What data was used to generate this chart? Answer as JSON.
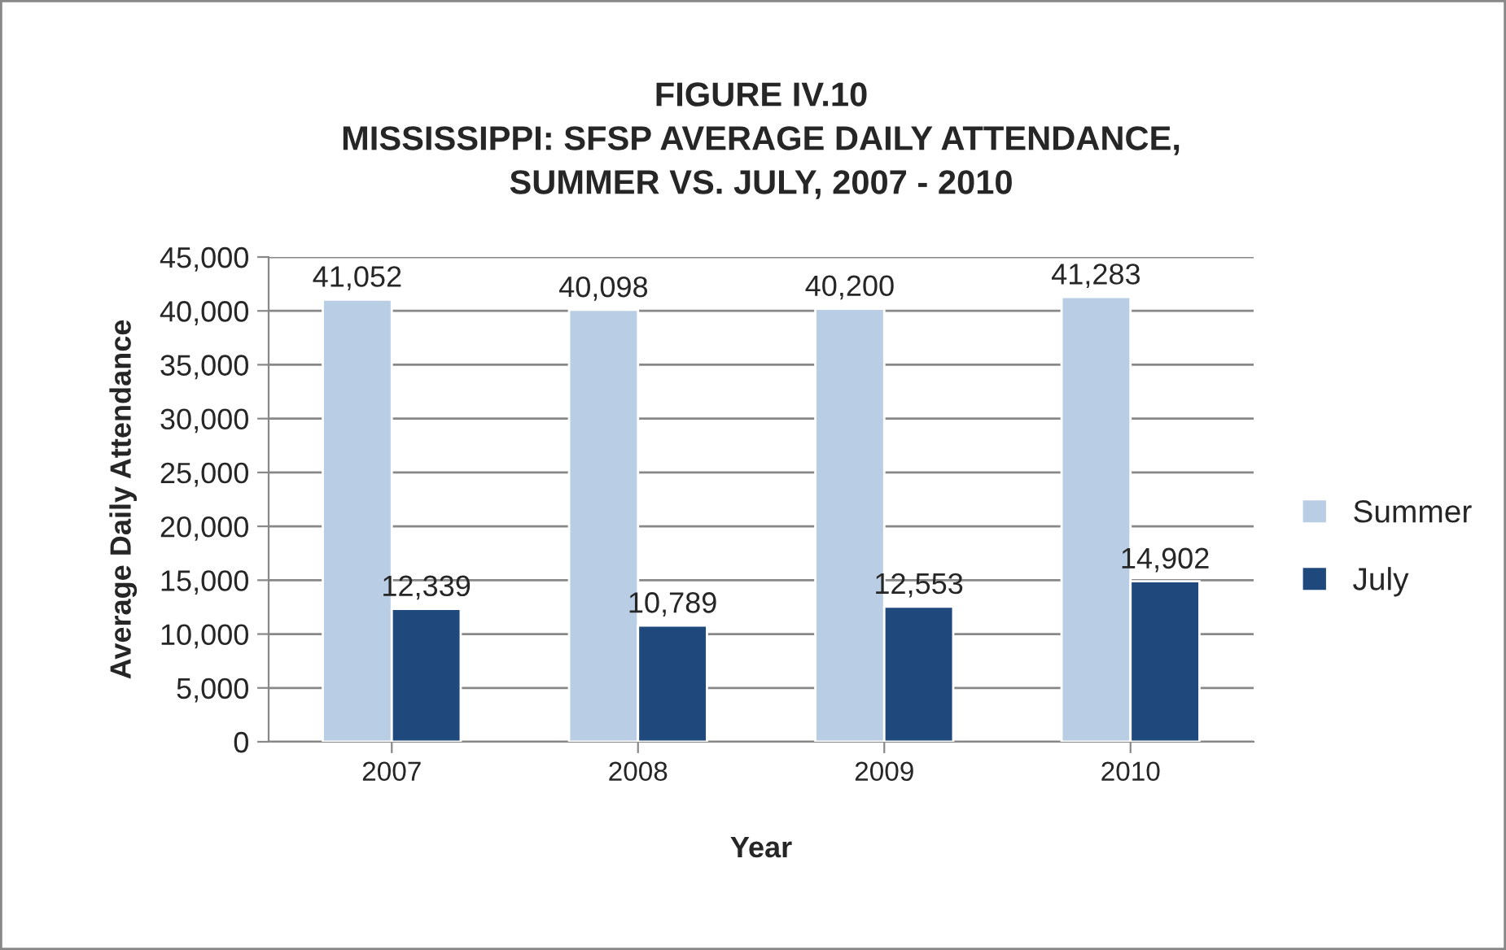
{
  "chart_data": {
    "type": "bar",
    "title": "FIGURE IV.10\nMISSISSIPPI: SFSP AVERAGE DAILY ATTENDANCE,\nSUMMER VS. JULY, 2007 - 2010",
    "xlabel": "Year",
    "ylabel": "Average Daily Attendance",
    "categories": [
      "2007",
      "2008",
      "2009",
      "2010"
    ],
    "series": [
      {
        "name": "Summer",
        "color": "#b9cde5",
        "values": [
          41052,
          40098,
          40200,
          41283
        ],
        "value_labels": [
          "41,052",
          "40,098",
          "40,200",
          "41,283"
        ]
      },
      {
        "name": "July",
        "color": "#1f497d",
        "values": [
          12339,
          10789,
          12553,
          14902
        ],
        "value_labels": [
          "12,339",
          "10,789",
          "12,553",
          "14,902"
        ]
      }
    ],
    "ylim": [
      0,
      45000
    ],
    "yticks": [
      {
        "value": 0,
        "label": "0"
      },
      {
        "value": 5000,
        "label": "5,000"
      },
      {
        "value": 10000,
        "label": "10,000"
      },
      {
        "value": 15000,
        "label": "15,000"
      },
      {
        "value": 20000,
        "label": "20,000"
      },
      {
        "value": 25000,
        "label": "25,000"
      },
      {
        "value": 30000,
        "label": "30,000"
      },
      {
        "value": 35000,
        "label": "35,000"
      },
      {
        "value": 40000,
        "label": "40,000"
      },
      {
        "value": 45000,
        "label": "45,000"
      }
    ],
    "grid": "y",
    "legend": "right"
  }
}
